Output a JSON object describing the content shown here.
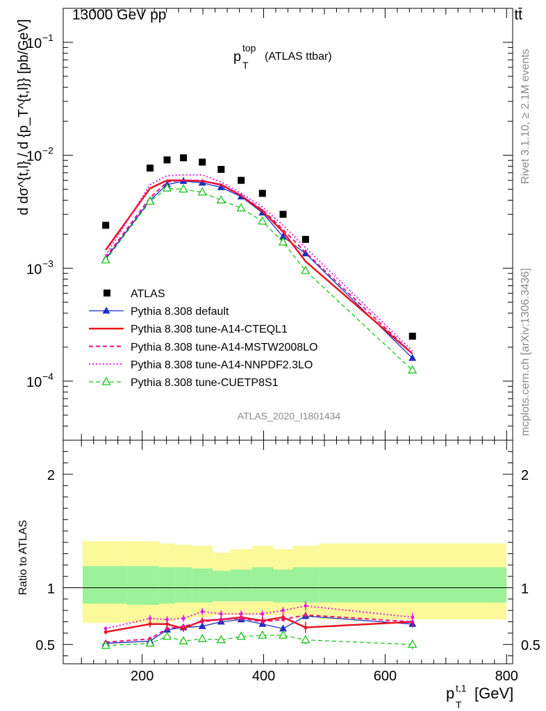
{
  "header": {
    "energy_label": "13000 GeV pp",
    "process_label": "tt̄"
  },
  "side_labels": {
    "rivet": "Rivet 3.1.10, ≥ 2.1M events",
    "mcplots": "mcplots.cern.ch [arXiv:1306.3436]"
  },
  "chart_data": [
    {
      "type": "line",
      "title": "p_T^top (ATLAS ttbar)",
      "title_main": "p",
      "title_sup": "top",
      "title_sub": "T",
      "title_tail": "(ATLAS ttbar)",
      "analysis_label": "ATLAS_2020_I1801434",
      "ylabel": "d dσ^{t,l} / d {p_T^{t,l}} [pb/GeV]",
      "y_scale": "log",
      "ylim": [
        3e-05,
        0.2
      ],
      "xlim": [
        70,
        810
      ],
      "y_tick_labels": [
        {
          "value": 0.1,
          "base": "10",
          "exp": "−1"
        },
        {
          "value": 0.01,
          "base": "10",
          "exp": "−2"
        },
        {
          "value": 0.001,
          "base": "10",
          "exp": "−3"
        },
        {
          "value": 0.0001,
          "base": "10",
          "exp": "−4"
        }
      ],
      "x": [
        140,
        213,
        241,
        268,
        299,
        330,
        363,
        398,
        432,
        469,
        645
      ],
      "series": [
        {
          "name": "ATLAS",
          "color": "#000000",
          "style": "square",
          "values": [
            0.0024,
            0.0077,
            0.0091,
            0.0095,
            0.0087,
            0.0075,
            0.006,
            0.0046,
            0.003,
            0.0018,
            0.00025
          ]
        },
        {
          "name": "Pythia 8.308 default",
          "color": "#1f2fbf",
          "style": "solid-triangle",
          "values": [
            0.00121,
            0.004,
            0.0055,
            0.0059,
            0.0057,
            0.0052,
            0.0043,
            0.0031,
            0.0019,
            0.00135,
            0.00016
          ]
        },
        {
          "name": "Pythia 8.308 tune-A14-CTEQL1",
          "color": "#e8141e",
          "style": "solid-thick",
          "values": [
            0.00145,
            0.0051,
            0.006,
            0.006,
            0.0059,
            0.0055,
            0.0044,
            0.0032,
            0.0021,
            0.00115,
            0.000175
          ]
        },
        {
          "name": "Pythia 8.308 tune-A14-MSTW2008LO",
          "color": "#e8147e",
          "style": "dashed",
          "values": [
            0.00125,
            0.0042,
            0.0058,
            0.006,
            0.006,
            0.0054,
            0.0044,
            0.0033,
            0.0022,
            0.00138,
            0.000175
          ]
        },
        {
          "name": "Pythia 8.308 tune-A14-NNPDF2.3LO",
          "color": "#e020e0",
          "style": "dotted",
          "values": [
            0.0013,
            0.0055,
            0.0066,
            0.0067,
            0.0067,
            0.0058,
            0.0046,
            0.0035,
            0.0024,
            0.00152,
            0.000185
          ]
        },
        {
          "name": "Pythia 8.308 tune-CUETP8S1",
          "color": "#19c419",
          "style": "dashed-open-triangle",
          "values": [
            0.00118,
            0.0039,
            0.0051,
            0.005,
            0.0047,
            0.004,
            0.0034,
            0.0026,
            0.0017,
            0.00095,
            0.000125
          ]
        }
      ]
    },
    {
      "type": "line",
      "ylabel": "Ratio to ATLAS",
      "xlabel": "p_T^{t,1} [GeV]",
      "xlabel_main": "p",
      "xlabel_sup": "t,1",
      "xlabel_sub": "T",
      "xlabel_tail": "[GeV]",
      "ylim": [
        0.33,
        2.3
      ],
      "xlim": [
        70,
        810
      ],
      "x_ticks": [
        200,
        400,
        600,
        800
      ],
      "y_ticks": [
        0.5,
        1,
        2
      ],
      "reference": 1,
      "uncertainty_bins": [
        {
          "x0": 102,
          "x1": 175,
          "inner": [
            0.86,
            1.19
          ],
          "outer": [
            0.69,
            1.41
          ]
        },
        {
          "x0": 175,
          "x1": 228,
          "inner": [
            0.85,
            1.19
          ],
          "outer": [
            0.69,
            1.41
          ]
        },
        {
          "x0": 228,
          "x1": 254,
          "inner": [
            0.86,
            1.18
          ],
          "outer": [
            0.7,
            1.39
          ]
        },
        {
          "x0": 254,
          "x1": 282,
          "inner": [
            0.87,
            1.18
          ],
          "outer": [
            0.72,
            1.38
          ]
        },
        {
          "x0": 282,
          "x1": 316,
          "inner": [
            0.87,
            1.17
          ],
          "outer": [
            0.74,
            1.37
          ]
        },
        {
          "x0": 316,
          "x1": 345,
          "inner": [
            0.88,
            1.15
          ],
          "outer": [
            0.76,
            1.31
          ]
        },
        {
          "x0": 345,
          "x1": 381,
          "inner": [
            0.88,
            1.16
          ],
          "outer": [
            0.76,
            1.34
          ]
        },
        {
          "x0": 381,
          "x1": 416,
          "inner": [
            0.88,
            1.18
          ],
          "outer": [
            0.76,
            1.37
          ]
        },
        {
          "x0": 416,
          "x1": 448,
          "inner": [
            0.87,
            1.16
          ],
          "outer": [
            0.76,
            1.34
          ]
        },
        {
          "x0": 448,
          "x1": 491,
          "inner": [
            0.87,
            1.18
          ],
          "outer": [
            0.74,
            1.37
          ]
        },
        {
          "x0": 491,
          "x1": 800,
          "inner": [
            0.87,
            1.18
          ],
          "outer": [
            0.72,
            1.39
          ]
        }
      ],
      "series": [
        {
          "name": "Pythia 8.308 default",
          "color": "#1f2fbf",
          "values": [
            0.51,
            0.53,
            0.63,
            0.65,
            0.66,
            0.7,
            0.72,
            0.68,
            0.64,
            0.75,
            0.68
          ],
          "err": [
            0.02,
            0.02,
            0.02,
            0.02,
            0.02,
            0.02,
            0.02,
            0.02,
            0.02,
            0.03,
            0.03
          ]
        },
        {
          "name": "Pythia 8.308 tune-A14-CTEQL1",
          "color": "#e8141e",
          "values": [
            0.61,
            0.68,
            0.68,
            0.64,
            0.71,
            0.72,
            0.74,
            0.71,
            0.74,
            0.65,
            0.7
          ],
          "err": [
            0.02,
            0.03,
            0.03,
            0.03,
            0.03,
            0.03,
            0.03,
            0.03,
            0.03,
            0.05,
            0.04
          ]
        },
        {
          "name": "Pythia 8.308 tune-A14-MSTW2008LO",
          "color": "#e8147e",
          "values": [
            0.52,
            0.55,
            0.64,
            0.66,
            0.7,
            0.72,
            0.73,
            0.7,
            0.72,
            0.76,
            0.7
          ],
          "err": [
            0.02,
            0.02,
            0.02,
            0.02,
            0.02,
            0.02,
            0.02,
            0.02,
            0.02,
            0.03,
            0.03
          ]
        },
        {
          "name": "Pythia 8.308 tune-A14-NNPDF2.3LO",
          "color": "#e020e0",
          "values": [
            0.64,
            0.73,
            0.72,
            0.73,
            0.79,
            0.77,
            0.77,
            0.77,
            0.8,
            0.84,
            0.74
          ],
          "err": [
            0.02,
            0.03,
            0.03,
            0.03,
            0.03,
            0.03,
            0.03,
            0.03,
            0.03,
            0.04,
            0.04
          ]
        },
        {
          "name": "Pythia 8.308 tune-CUETP8S1",
          "color": "#19c419",
          "values": [
            0.49,
            0.51,
            0.57,
            0.53,
            0.55,
            0.54,
            0.57,
            0.58,
            0.58,
            0.54,
            0.5
          ],
          "err": [
            0.02,
            0.02,
            0.02,
            0.02,
            0.02,
            0.02,
            0.02,
            0.02,
            0.03,
            0.04,
            0.04
          ]
        }
      ]
    }
  ]
}
